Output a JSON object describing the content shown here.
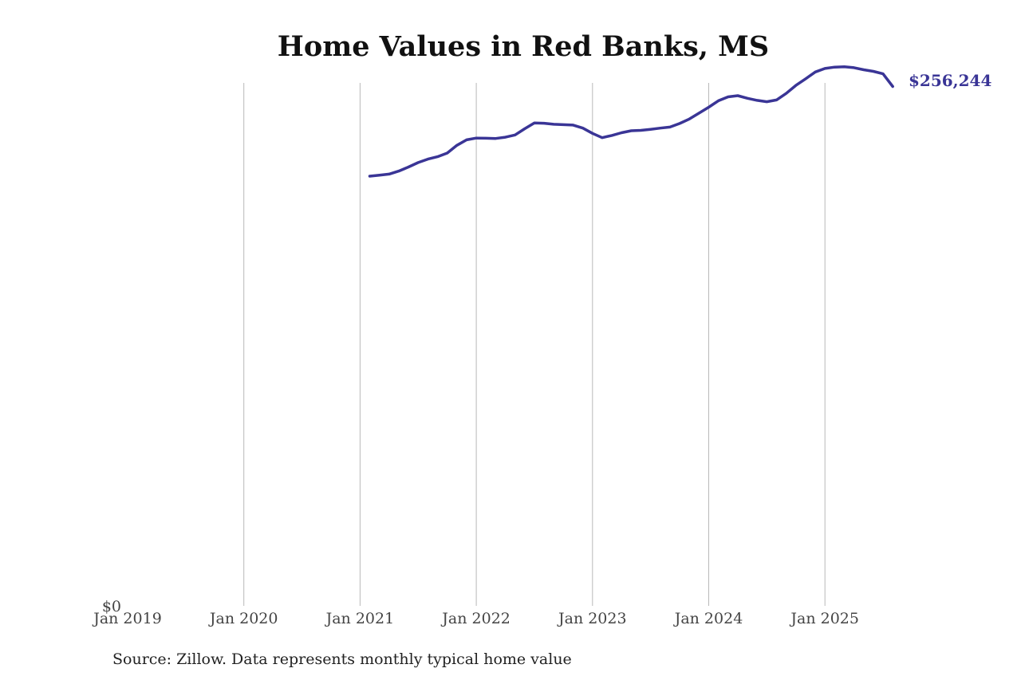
{
  "colors": {
    "line": "#3a3596",
    "grid": "#b9b9b9",
    "tick_text": "#444444",
    "end_label": "#3a3596"
  },
  "footer": {
    "source": "Source: Zillow. Data represents monthly typical home value"
  },
  "chart_data": {
    "type": "line",
    "title": "Home Values in Red Banks, MS",
    "xlabel": "",
    "ylabel": "",
    "x_ticks": [
      "Jan 2019",
      "Jan 2020",
      "Jan 2021",
      "Jan 2022",
      "Jan 2023",
      "Jan 2024",
      "Jan 2025"
    ],
    "y_ticks": [
      "$0"
    ],
    "xlim": [
      "2019-01",
      "2025-12"
    ],
    "ylim": [
      0,
      258000
    ],
    "grid": "vertical",
    "legend": "none",
    "end_label": "$256,244",
    "series": [
      {
        "x": [
          "2021-02",
          "2021-03",
          "2021-04",
          "2021-05",
          "2021-06",
          "2021-07",
          "2021-08",
          "2021-09",
          "2021-10",
          "2021-11",
          "2021-12",
          "2022-01",
          "2022-02",
          "2022-03",
          "2022-04",
          "2022-05",
          "2022-06",
          "2022-07",
          "2022-08",
          "2022-09",
          "2022-10",
          "2022-11",
          "2022-12",
          "2023-01",
          "2023-02",
          "2023-03",
          "2023-04",
          "2023-05",
          "2023-06",
          "2023-07",
          "2023-08",
          "2023-09",
          "2023-10",
          "2023-11",
          "2023-12",
          "2024-01",
          "2024-02",
          "2024-03",
          "2024-04",
          "2024-05",
          "2024-06",
          "2024-07",
          "2024-08",
          "2024-09",
          "2024-10",
          "2024-11",
          "2024-12",
          "2025-01",
          "2025-02",
          "2025-03",
          "2025-04",
          "2025-05",
          "2025-06",
          "2025-07",
          "2025-08"
        ],
        "y": [
          212000,
          212500,
          213000,
          214500,
          216500,
          218700,
          220400,
          221600,
          223400,
          227200,
          229900,
          230800,
          230700,
          230600,
          231200,
          232300,
          235400,
          238200,
          238100,
          237600,
          237400,
          237200,
          235700,
          233100,
          231000,
          232100,
          233400,
          234400,
          234600,
          235100,
          235700,
          236200,
          238000,
          240200,
          243100,
          246000,
          249200,
          251100,
          251700,
          250400,
          249400,
          248700,
          249600,
          252800,
          256800,
          260000,
          263400,
          265100,
          265800,
          266000,
          265500,
          264500,
          263700,
          262500,
          256244
        ]
      }
    ]
  }
}
